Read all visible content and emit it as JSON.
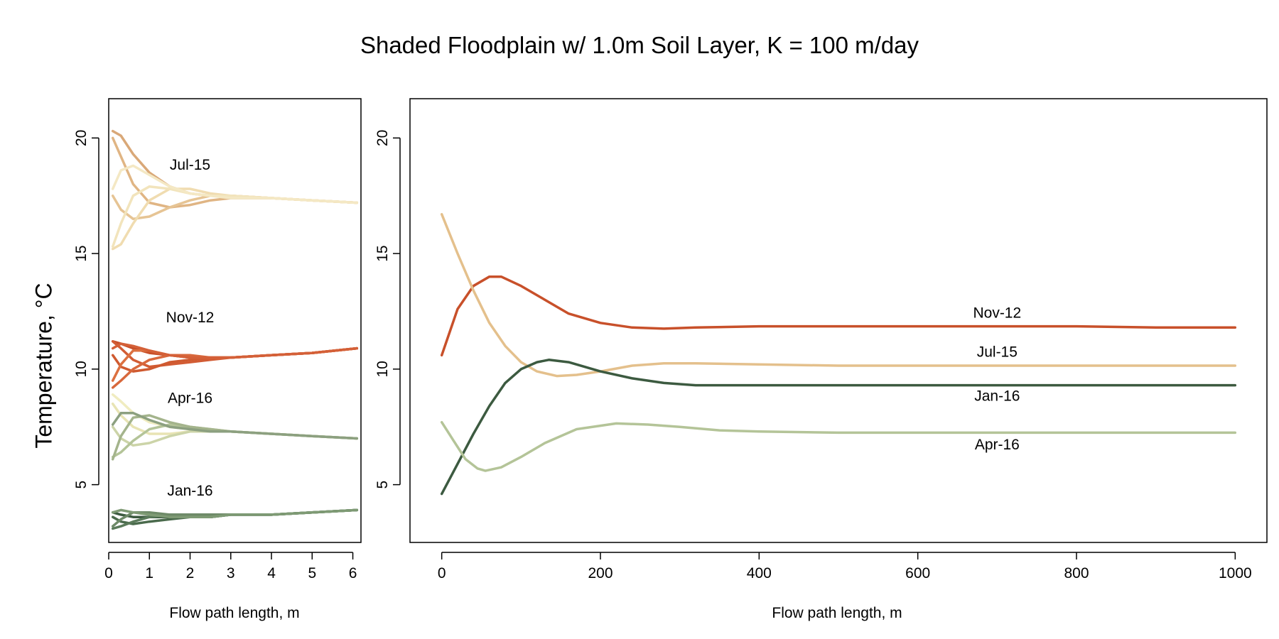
{
  "title": "Shaded Floodplain w/ 1.0m Soil Layer, K = 100 m/day",
  "ylabel": "Temperature, °C",
  "colors": {
    "nov": "#c8502a",
    "jul": "#e4c08c",
    "jan": "#3c5a40",
    "apr": "#b4c498"
  },
  "chart_data": [
    {
      "type": "line",
      "panel": "left",
      "xlabel": "Flow path length, m",
      "xlim": [
        0,
        6.2
      ],
      "ylim": [
        2.5,
        21.7
      ],
      "xticks": [
        0,
        1,
        2,
        3,
        4,
        5,
        6
      ],
      "yticks": [
        5,
        10,
        15,
        20
      ],
      "labels": [
        {
          "text": "Jul-15",
          "x": 2.0,
          "y": 18.8
        },
        {
          "text": "Nov-12",
          "x": 2.0,
          "y": 12.2
        },
        {
          "text": "Apr-16",
          "x": 2.0,
          "y": 8.7
        },
        {
          "text": "Jan-16",
          "x": 2.0,
          "y": 4.7
        }
      ],
      "series": [
        {
          "group": "jul",
          "color": "#d9a878",
          "x": [
            0.1,
            0.3,
            0.6,
            1.0,
            1.5,
            2.0,
            2.5,
            3.0,
            4.0,
            5.0,
            6.1
          ],
          "y": [
            20.3,
            20.1,
            19.3,
            18.5,
            17.9,
            17.6,
            17.5,
            17.5,
            17.4,
            17.3,
            17.2
          ]
        },
        {
          "group": "jul",
          "color": "#e0b584",
          "x": [
            0.1,
            0.3,
            0.6,
            1.0,
            1.5,
            2.0,
            2.5,
            3.0,
            4.0,
            5.0,
            6.1
          ],
          "y": [
            20.0,
            19.2,
            18.0,
            17.2,
            17.0,
            17.1,
            17.3,
            17.4,
            17.4,
            17.3,
            17.2
          ]
        },
        {
          "group": "jul",
          "color": "#e6c494",
          "x": [
            0.1,
            0.3,
            0.6,
            1.0,
            1.5,
            2.0,
            2.5,
            3.0,
            4.0,
            5.0,
            6.1
          ],
          "y": [
            17.5,
            16.9,
            16.5,
            16.6,
            17.0,
            17.3,
            17.5,
            17.5,
            17.4,
            17.3,
            17.2
          ]
        },
        {
          "group": "jul",
          "color": "#f0dcb0",
          "x": [
            0.1,
            0.3,
            0.6,
            1.0,
            1.5,
            2.0,
            2.5,
            3.0,
            4.0,
            5.0,
            6.1
          ],
          "y": [
            15.2,
            15.4,
            16.3,
            17.3,
            17.8,
            17.8,
            17.6,
            17.5,
            17.4,
            17.3,
            17.2
          ]
        },
        {
          "group": "jul",
          "color": "#f2e4bc",
          "x": [
            0.1,
            0.3,
            0.6,
            1.0,
            1.5,
            2.0,
            2.5,
            3.0,
            4.0,
            5.0,
            6.1
          ],
          "y": [
            15.3,
            16.3,
            17.5,
            17.9,
            17.8,
            17.6,
            17.5,
            17.5,
            17.4,
            17.3,
            17.2
          ]
        },
        {
          "group": "jul",
          "color": "#f4e8c4",
          "x": [
            0.1,
            0.3,
            0.6,
            1.0,
            1.5,
            2.0,
            2.5,
            3.0,
            4.0,
            5.0,
            6.1
          ],
          "y": [
            17.8,
            18.6,
            18.8,
            18.4,
            17.9,
            17.6,
            17.5,
            17.4,
            17.4,
            17.3,
            17.2
          ]
        },
        {
          "group": "nov",
          "color": "#c8502a",
          "x": [
            0.1,
            0.3,
            0.6,
            1.0,
            1.5,
            2.0,
            2.5,
            3.0,
            4.0,
            5.0,
            6.1
          ],
          "y": [
            11.2,
            11.1,
            10.9,
            10.7,
            10.6,
            10.5,
            10.5,
            10.5,
            10.6,
            10.7,
            10.9
          ]
        },
        {
          "group": "nov",
          "color": "#d25c34",
          "x": [
            0.1,
            0.3,
            0.6,
            1.0,
            1.5,
            2.0,
            2.5,
            3.0,
            4.0,
            5.0,
            6.1
          ],
          "y": [
            11.2,
            10.9,
            10.4,
            10.1,
            10.2,
            10.3,
            10.4,
            10.5,
            10.6,
            10.7,
            10.9
          ]
        },
        {
          "group": "nov",
          "color": "#cf5a30",
          "x": [
            0.1,
            0.3,
            0.6,
            1.0,
            1.5,
            2.0,
            2.5,
            3.0,
            4.0,
            5.0,
            6.1
          ],
          "y": [
            10.6,
            10.1,
            9.9,
            10.0,
            10.3,
            10.4,
            10.5,
            10.5,
            10.6,
            10.7,
            10.9
          ]
        },
        {
          "group": "nov",
          "color": "#d8683c",
          "x": [
            0.1,
            0.3,
            0.6,
            1.0,
            1.5,
            2.0,
            2.5,
            3.0,
            4.0,
            5.0,
            6.1
          ],
          "y": [
            9.2,
            9.5,
            10.0,
            10.4,
            10.6,
            10.6,
            10.5,
            10.5,
            10.6,
            10.7,
            10.9
          ]
        },
        {
          "group": "nov",
          "color": "#dc7040",
          "x": [
            0.1,
            0.3,
            0.6,
            1.0,
            1.5,
            2.0,
            2.5,
            3.0,
            4.0,
            5.0,
            6.1
          ],
          "y": [
            9.5,
            10.2,
            10.8,
            10.8,
            10.6,
            10.5,
            10.5,
            10.5,
            10.6,
            10.7,
            10.9
          ]
        },
        {
          "group": "nov",
          "color": "#d46038",
          "x": [
            0.1,
            0.3,
            0.6,
            1.0,
            1.5,
            2.0,
            2.5,
            3.0,
            4.0,
            5.0,
            6.1
          ],
          "y": [
            10.9,
            11.1,
            11.0,
            10.8,
            10.6,
            10.5,
            10.5,
            10.5,
            10.6,
            10.7,
            10.9
          ]
        },
        {
          "group": "apr",
          "color": "#f0ecc0",
          "x": [
            0.1,
            0.3,
            0.6,
            1.0,
            1.5,
            2.0,
            2.5,
            3.0,
            4.0,
            5.0,
            6.1
          ],
          "y": [
            8.9,
            8.6,
            8.1,
            7.7,
            7.5,
            7.4,
            7.3,
            7.3,
            7.2,
            7.1,
            7.0
          ]
        },
        {
          "group": "apr",
          "color": "#e8e4b4",
          "x": [
            0.1,
            0.3,
            0.6,
            1.0,
            1.5,
            2.0,
            2.5,
            3.0,
            4.0,
            5.0,
            6.1
          ],
          "y": [
            8.5,
            8.0,
            7.5,
            7.2,
            7.2,
            7.3,
            7.3,
            7.3,
            7.2,
            7.1,
            7.0
          ]
        },
        {
          "group": "apr",
          "color": "#ccd4a8",
          "x": [
            0.1,
            0.3,
            0.6,
            1.0,
            1.5,
            2.0,
            2.5,
            3.0,
            4.0,
            5.0,
            6.1
          ],
          "y": [
            7.5,
            7.0,
            6.7,
            6.8,
            7.1,
            7.3,
            7.3,
            7.3,
            7.2,
            7.1,
            7.0
          ]
        },
        {
          "group": "apr",
          "color": "#b4c498",
          "x": [
            0.1,
            0.3,
            0.6,
            1.0,
            1.5,
            2.0,
            2.5,
            3.0,
            4.0,
            5.0,
            6.1
          ],
          "y": [
            6.2,
            6.4,
            6.9,
            7.4,
            7.6,
            7.5,
            7.4,
            7.3,
            7.2,
            7.1,
            7.0
          ]
        },
        {
          "group": "apr",
          "color": "#a4b48c",
          "x": [
            0.1,
            0.3,
            0.6,
            1.0,
            1.5,
            2.0,
            2.5,
            3.0,
            4.0,
            5.0,
            6.1
          ],
          "y": [
            6.1,
            7.1,
            7.9,
            8.0,
            7.7,
            7.5,
            7.4,
            7.3,
            7.2,
            7.1,
            7.0
          ]
        },
        {
          "group": "apr",
          "color": "#8ca080",
          "x": [
            0.1,
            0.3,
            0.6,
            1.0,
            1.5,
            2.0,
            2.5,
            3.0,
            4.0,
            5.0,
            6.1
          ],
          "y": [
            7.6,
            8.1,
            8.1,
            7.8,
            7.5,
            7.4,
            7.3,
            7.3,
            7.2,
            7.1,
            7.0
          ]
        },
        {
          "group": "jan",
          "color": "#3c5a40",
          "x": [
            0.1,
            0.3,
            0.6,
            1.0,
            1.5,
            2.0,
            2.5,
            3.0,
            4.0,
            5.0,
            6.1
          ],
          "y": [
            3.8,
            3.7,
            3.6,
            3.6,
            3.6,
            3.6,
            3.6,
            3.7,
            3.7,
            3.8,
            3.9
          ]
        },
        {
          "group": "jan",
          "color": "#4a6a4c",
          "x": [
            0.1,
            0.3,
            0.6,
            1.0,
            1.5,
            2.0,
            2.5,
            3.0,
            4.0,
            5.0,
            6.1
          ],
          "y": [
            3.6,
            3.4,
            3.3,
            3.4,
            3.5,
            3.6,
            3.6,
            3.7,
            3.7,
            3.8,
            3.9
          ]
        },
        {
          "group": "jan",
          "color": "#5a7a5a",
          "x": [
            0.1,
            0.3,
            0.6,
            1.0,
            1.5,
            2.0,
            2.5,
            3.0,
            4.0,
            5.0,
            6.1
          ],
          "y": [
            3.1,
            3.2,
            3.4,
            3.6,
            3.7,
            3.7,
            3.7,
            3.7,
            3.7,
            3.8,
            3.9
          ]
        },
        {
          "group": "jan",
          "color": "#6e8a68",
          "x": [
            0.1,
            0.3,
            0.6,
            1.0,
            1.5,
            2.0,
            2.5,
            3.0,
            4.0,
            5.0,
            6.1
          ],
          "y": [
            3.2,
            3.5,
            3.8,
            3.8,
            3.7,
            3.7,
            3.7,
            3.7,
            3.7,
            3.8,
            3.9
          ]
        },
        {
          "group": "jan",
          "color": "#7e9a74",
          "x": [
            0.1,
            0.3,
            0.6,
            1.0,
            1.5,
            2.0,
            2.5,
            3.0,
            4.0,
            5.0,
            6.1
          ],
          "y": [
            3.8,
            3.9,
            3.8,
            3.7,
            3.6,
            3.6,
            3.6,
            3.7,
            3.7,
            3.8,
            3.9
          ]
        }
      ]
    },
    {
      "type": "line",
      "panel": "right",
      "xlabel": "Flow path length, m",
      "xlim": [
        -40,
        1040
      ],
      "ylim": [
        2.5,
        21.7
      ],
      "xticks": [
        0,
        200,
        400,
        600,
        800,
        1000
      ],
      "yticks": [
        5,
        10,
        15,
        20
      ],
      "labels": [
        {
          "text": "Nov-12",
          "x": 700,
          "y": 12.4
        },
        {
          "text": "Jul-15",
          "x": 700,
          "y": 10.7
        },
        {
          "text": "Jan-16",
          "x": 700,
          "y": 8.8
        },
        {
          "text": "Apr-16",
          "x": 700,
          "y": 6.7
        }
      ],
      "series": [
        {
          "name": "Nov-12",
          "group": "nov",
          "color": "#c8502a",
          "x": [
            0,
            20,
            40,
            60,
            75,
            100,
            130,
            160,
            200,
            240,
            280,
            320,
            400,
            500,
            600,
            700,
            800,
            900,
            1000
          ],
          "y": [
            10.6,
            12.6,
            13.6,
            14.0,
            14.0,
            13.6,
            13.0,
            12.4,
            12.0,
            11.8,
            11.75,
            11.8,
            11.85,
            11.85,
            11.85,
            11.85,
            11.85,
            11.8,
            11.8
          ]
        },
        {
          "name": "Jul-15",
          "group": "jul",
          "color": "#e4c08c",
          "x": [
            0,
            20,
            40,
            60,
            80,
            100,
            120,
            145,
            170,
            200,
            240,
            280,
            320,
            400,
            500,
            600,
            700,
            800,
            900,
            1000
          ],
          "y": [
            16.7,
            15.0,
            13.4,
            12.0,
            11.0,
            10.3,
            9.9,
            9.7,
            9.75,
            9.9,
            10.15,
            10.25,
            10.25,
            10.2,
            10.15,
            10.15,
            10.15,
            10.15,
            10.15,
            10.15
          ]
        },
        {
          "name": "Jan-16",
          "group": "jan",
          "color": "#3c5a40",
          "x": [
            0,
            20,
            40,
            60,
            80,
            100,
            120,
            135,
            160,
            200,
            240,
            280,
            320,
            400,
            500,
            600,
            700,
            800,
            900,
            1000
          ],
          "y": [
            4.6,
            5.9,
            7.2,
            8.4,
            9.4,
            10.0,
            10.3,
            10.4,
            10.3,
            9.9,
            9.6,
            9.4,
            9.3,
            9.3,
            9.3,
            9.3,
            9.3,
            9.3,
            9.3,
            9.3
          ]
        },
        {
          "name": "Apr-16",
          "group": "apr",
          "color": "#b4c498",
          "x": [
            0,
            15,
            30,
            45,
            55,
            75,
            100,
            130,
            170,
            220,
            260,
            300,
            350,
            400,
            500,
            600,
            700,
            800,
            900,
            1000
          ],
          "y": [
            7.7,
            6.9,
            6.1,
            5.7,
            5.6,
            5.75,
            6.2,
            6.8,
            7.4,
            7.65,
            7.6,
            7.5,
            7.35,
            7.3,
            7.25,
            7.25,
            7.25,
            7.25,
            7.25,
            7.25
          ]
        }
      ]
    }
  ]
}
